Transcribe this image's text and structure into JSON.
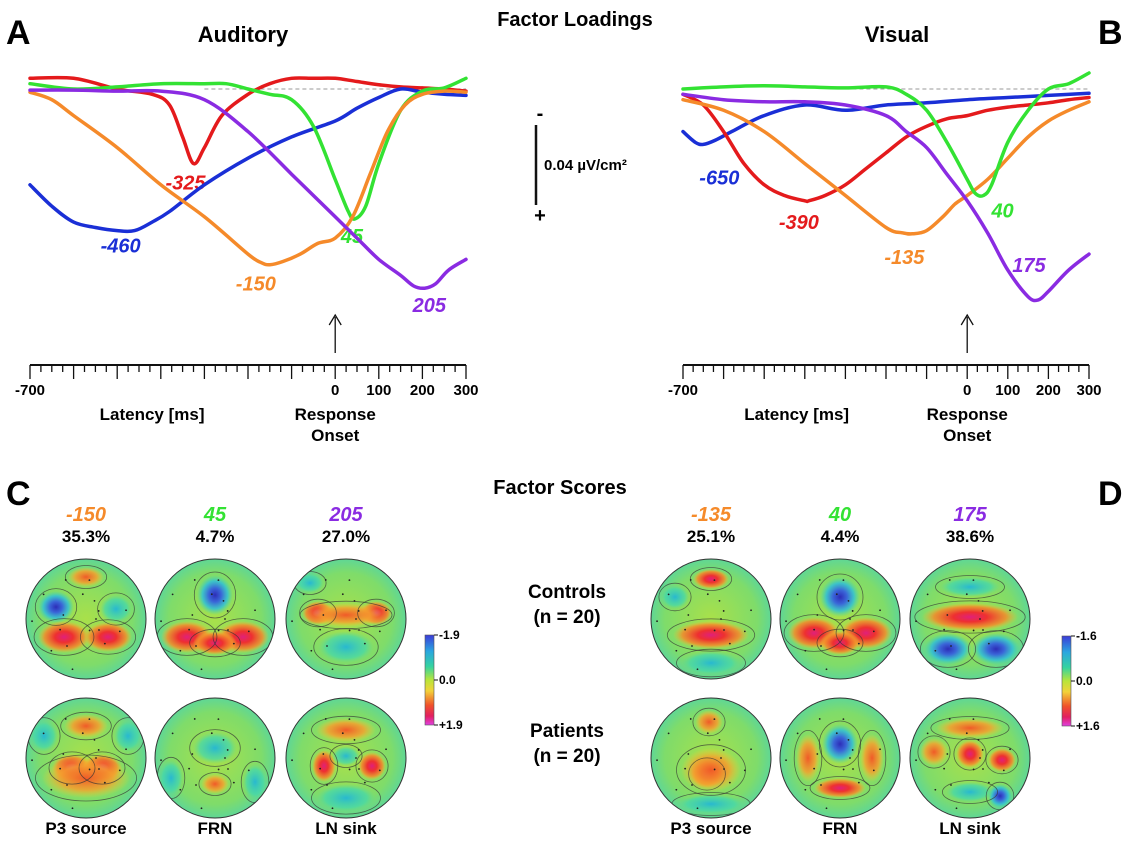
{
  "header": {
    "loadings_title": "Factor Loadings",
    "scores_title": "Factor Scores"
  },
  "colors": {
    "blue": "#1a2fd6",
    "red": "#e41a1c",
    "green": "#33e233",
    "orange": "#f58a2a",
    "purple": "#8a2be2"
  },
  "scale_bar": {
    "minus": "-",
    "plus": "+",
    "value_label": "0.04 µV/cm²"
  },
  "chart_data": [
    {
      "type": "line",
      "panel": "A",
      "title": "Auditory",
      "xlabel": "Latency [ms]",
      "onset_label": [
        "Response",
        "Onset"
      ],
      "xlim": [
        -700,
        300
      ],
      "tick_labels": [
        "-700",
        "0",
        "100",
        "200",
        "300"
      ],
      "tick_values": [
        -700,
        0,
        100,
        200,
        300
      ],
      "series": [
        {
          "color": "red",
          "label": "-325",
          "peak_x": -325,
          "x": [
            -700,
            -600,
            -500,
            -420,
            -380,
            -350,
            -325,
            -300,
            -260,
            -200,
            -150,
            -100,
            -50,
            0,
            50,
            100,
            150,
            200,
            250,
            300
          ],
          "y": [
            0.01,
            0.01,
            0.0,
            -0.005,
            -0.015,
            -0.045,
            -0.07,
            -0.055,
            -0.025,
            -0.005,
            0.005,
            0.01,
            0.01,
            0.01,
            0.007,
            0.004,
            0.002,
            0.001,
            0.0,
            -0.002
          ]
        },
        {
          "color": "blue",
          "label": "-460",
          "peak_x": -460,
          "x": [
            -700,
            -650,
            -600,
            -550,
            -500,
            -460,
            -420,
            -380,
            -300,
            -200,
            -100,
            0,
            50,
            100,
            150,
            200,
            250,
            300
          ],
          "y": [
            -0.09,
            -0.11,
            -0.125,
            -0.13,
            -0.133,
            -0.133,
            -0.125,
            -0.115,
            -0.09,
            -0.065,
            -0.045,
            -0.03,
            -0.018,
            -0.008,
            0.0,
            -0.003,
            -0.005,
            -0.006
          ]
        },
        {
          "color": "green",
          "label": "45",
          "peak_x": 45,
          "x": [
            -700,
            -600,
            -500,
            -400,
            -300,
            -250,
            -200,
            -150,
            -100,
            -50,
            0,
            30,
            45,
            70,
            100,
            150,
            200,
            250,
            300
          ],
          "y": [
            0.005,
            0.0,
            0.002,
            0.005,
            0.005,
            0.005,
            0.0,
            -0.005,
            -0.01,
            -0.035,
            -0.085,
            -0.115,
            -0.122,
            -0.11,
            -0.07,
            -0.02,
            -0.002,
            0.001,
            0.01
          ]
        },
        {
          "color": "orange",
          "label": "-150",
          "peak_x": -150,
          "x": [
            -700,
            -650,
            -600,
            -500,
            -400,
            -300,
            -200,
            -170,
            -150,
            -120,
            -80,
            -40,
            0,
            40,
            80,
            120,
            160,
            200,
            250,
            300
          ],
          "y": [
            -0.003,
            -0.01,
            -0.025,
            -0.055,
            -0.09,
            -0.12,
            -0.155,
            -0.163,
            -0.165,
            -0.162,
            -0.155,
            -0.145,
            -0.14,
            -0.12,
            -0.08,
            -0.04,
            -0.015,
            -0.005,
            -0.002,
            -0.003
          ]
        },
        {
          "color": "purple",
          "label": "205",
          "peak_x": 205,
          "x": [
            -700,
            -600,
            -500,
            -400,
            -300,
            -200,
            -100,
            -50,
            0,
            50,
            100,
            150,
            180,
            205,
            230,
            260,
            300
          ],
          "y": [
            -0.001,
            -0.001,
            -0.002,
            -0.002,
            -0.01,
            -0.04,
            -0.08,
            -0.1,
            -0.12,
            -0.14,
            -0.16,
            -0.175,
            -0.185,
            -0.187,
            -0.183,
            -0.17,
            -0.16
          ]
        }
      ]
    },
    {
      "type": "line",
      "panel": "B",
      "title": "Visual",
      "xlabel": "Latency [ms]",
      "onset_label": [
        "Response",
        "Onset"
      ],
      "xlim": [
        -700,
        300
      ],
      "tick_labels": [
        "-700",
        "0",
        "100",
        "200",
        "300"
      ],
      "tick_values": [
        -700,
        0,
        100,
        200,
        300
      ],
      "series": [
        {
          "color": "blue",
          "label": "-650",
          "peak_x": -650,
          "x": [
            -700,
            -670,
            -650,
            -620,
            -580,
            -500,
            -400,
            -300,
            -200,
            -100,
            0,
            100,
            200,
            300
          ],
          "y": [
            -0.04,
            -0.05,
            -0.052,
            -0.048,
            -0.04,
            -0.025,
            -0.015,
            -0.02,
            -0.015,
            -0.013,
            -0.01,
            -0.008,
            -0.006,
            -0.004
          ]
        },
        {
          "color": "red",
          "label": "-390",
          "peak_x": -390,
          "x": [
            -700,
            -650,
            -600,
            -550,
            -500,
            -450,
            -400,
            -390,
            -350,
            -300,
            -250,
            -200,
            -150,
            -100,
            -50,
            0,
            50,
            100,
            150,
            200,
            250,
            300
          ],
          "y": [
            -0.005,
            -0.015,
            -0.04,
            -0.07,
            -0.09,
            -0.1,
            -0.105,
            -0.105,
            -0.1,
            -0.09,
            -0.075,
            -0.06,
            -0.045,
            -0.035,
            -0.028,
            -0.025,
            -0.02,
            -0.017,
            -0.015,
            -0.013,
            -0.01,
            -0.008
          ]
        },
        {
          "color": "orange",
          "label": "-135",
          "peak_x": -135,
          "x": [
            -700,
            -600,
            -500,
            -400,
            -300,
            -200,
            -160,
            -135,
            -100,
            -60,
            -30,
            0,
            50,
            100,
            150,
            200,
            250,
            300
          ],
          "y": [
            -0.01,
            -0.02,
            -0.04,
            -0.07,
            -0.1,
            -0.13,
            -0.135,
            -0.136,
            -0.133,
            -0.12,
            -0.108,
            -0.1,
            -0.085,
            -0.065,
            -0.045,
            -0.03,
            -0.02,
            -0.012
          ]
        },
        {
          "color": "green",
          "label": "40",
          "peak_x": 40,
          "x": [
            -700,
            -600,
            -500,
            -400,
            -300,
            -200,
            -150,
            -100,
            -50,
            0,
            20,
            40,
            60,
            100,
            150,
            200,
            250,
            300
          ],
          "y": [
            0.0,
            0.002,
            0.003,
            0.002,
            0.001,
            0.002,
            -0.005,
            -0.02,
            -0.05,
            -0.085,
            -0.098,
            -0.1,
            -0.09,
            -0.05,
            -0.02,
            0.0,
            0.005,
            0.015
          ]
        },
        {
          "color": "purple",
          "label": "175",
          "peak_x": 175,
          "x": [
            -700,
            -600,
            -500,
            -400,
            -300,
            -200,
            -150,
            -100,
            -50,
            0,
            50,
            100,
            150,
            175,
            200,
            250,
            300
          ],
          "y": [
            -0.005,
            -0.01,
            -0.012,
            -0.012,
            -0.015,
            -0.025,
            -0.04,
            -0.055,
            -0.08,
            -0.105,
            -0.135,
            -0.17,
            -0.195,
            -0.198,
            -0.19,
            -0.17,
            -0.155
          ]
        }
      ]
    }
  ],
  "topo": {
    "groups": [
      "Controls\n(n = 20)",
      "Patients\n(n = 20)"
    ],
    "group_lines": [
      [
        "Controls",
        "(n = 20)"
      ],
      [
        "Patients",
        "(n = 20)"
      ]
    ],
    "components": [
      "P3 source",
      "FRN",
      "LN sink"
    ],
    "auditory": {
      "peaks": [
        "-150",
        "45",
        "205"
      ],
      "peak_colors": [
        "orange",
        "green",
        "purple"
      ],
      "variance": [
        "35.3%",
        "4.7%",
        "27.0%"
      ],
      "colorbar": {
        "top": "-1.9",
        "mid": "0.0",
        "bottom": "+1.9"
      }
    },
    "visual": {
      "peaks": [
        "-135",
        "40",
        "175"
      ],
      "peak_colors": [
        "orange",
        "green",
        "purple"
      ],
      "variance": [
        "25.1%",
        "4.4%",
        "38.6%"
      ],
      "colorbar": {
        "top": "-1.6",
        "mid": "0.0",
        "bottom": "+1.6"
      }
    }
  }
}
